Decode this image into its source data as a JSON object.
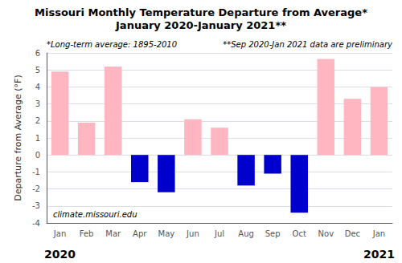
{
  "chart_data": {
    "type": "bar",
    "title": "Missouri Monthly Temperature Departure from Average*",
    "subtitle": "January 2020-January 2021**",
    "ylabel": "Departure from Average (°F)",
    "categories": [
      "Jan",
      "Feb",
      "Mar",
      "Apr",
      "May",
      "Jun",
      "Jul",
      "Aug",
      "Sep",
      "Oct",
      "Nov",
      "Dec",
      "Jan"
    ],
    "values": [
      4.9,
      1.9,
      5.2,
      -1.6,
      -2.2,
      2.1,
      1.6,
      -1.8,
      -1.1,
      -3.4,
      5.65,
      3.3,
      4.0
    ],
    "colors": [
      "#FFB6C1",
      "#FFB6C1",
      "#FFB6C1",
      "#0000CC",
      "#0000CC",
      "#FFB6C1",
      "#FFB6C1",
      "#0000CC",
      "#0000CC",
      "#0000CC",
      "#FFB6C1",
      "#FFB6C1",
      "#FFB6C1"
    ],
    "ylim": [
      -4,
      6
    ],
    "yticks": [
      -4,
      -3,
      -2,
      -1,
      0,
      1,
      2,
      3,
      4,
      5,
      6
    ],
    "grid": true,
    "annotations": [
      "*Long-term average: 1895-2010",
      "**Sep 2020-Jan 2021 data are preliminary",
      "climate.missouri.edu",
      "2020",
      "2021"
    ]
  }
}
